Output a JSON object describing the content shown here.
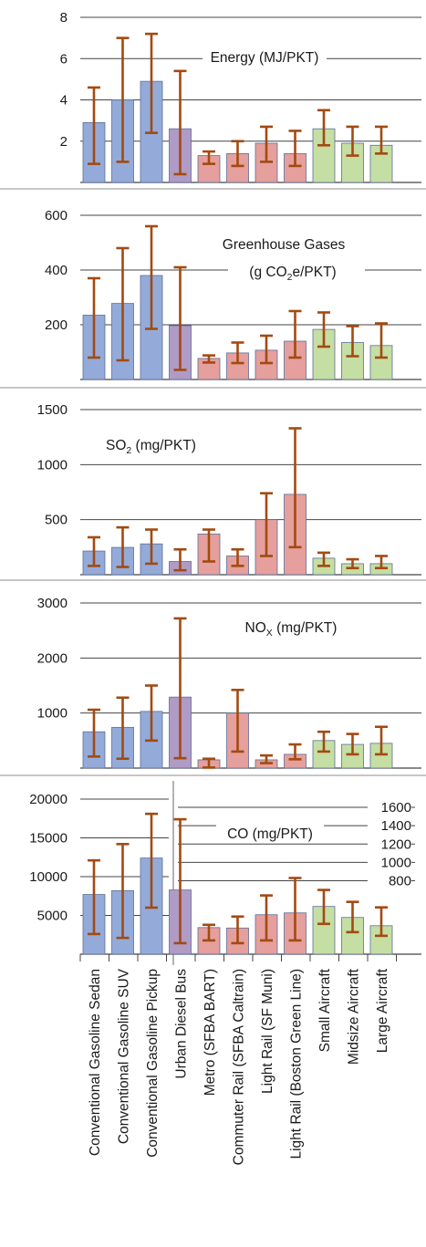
{
  "categories": [
    "Conventional Gasoline Sedan",
    "Conventional Gasoline SUV",
    "Conventional Gasoline Pickup",
    "Urban Diesel Bus",
    "Metro (SFBA BART)",
    "Commuter Rail (SFBA Caltrain)",
    "Light Rail (SF Muni)",
    "Light Rail (Boston Green Line)",
    "Small Aircraft",
    "Midsize Aircraft",
    "Large Aircraft"
  ],
  "colors": {
    "car": "#94abd9",
    "bus": "#b09bc6",
    "rail": "#e59f9c",
    "air": "#c5dea3",
    "error_bar": "#a34a11"
  },
  "chart_data": [
    {
      "type": "bar",
      "title_parts": [
        "Energy (MJ/PKT)"
      ],
      "ylim": [
        0,
        8
      ],
      "yticks": [
        "2",
        "4",
        "6",
        "8"
      ],
      "values": [
        2.9,
        4.0,
        4.9,
        2.6,
        1.3,
        1.4,
        1.9,
        1.4,
        2.6,
        1.9,
        1.8
      ],
      "err_low": [
        0.9,
        1.0,
        2.4,
        0.4,
        0.9,
        0.8,
        1.0,
        0.8,
        1.8,
        1.3,
        1.4
      ],
      "err_high": [
        4.6,
        7.0,
        7.2,
        5.4,
        1.5,
        2.0,
        2.7,
        2.5,
        3.5,
        2.7,
        2.7
      ]
    },
    {
      "type": "bar",
      "title_parts": [
        "Greenhouse Gases",
        "(g CO",
        "2",
        "e/PKT)"
      ],
      "ylim": [
        0,
        700
      ],
      "yticks": [
        "200",
        "400",
        "600"
      ],
      "values": [
        235,
        278,
        380,
        197,
        77,
        97,
        107,
        140,
        183,
        135,
        124
      ],
      "err_low": [
        80,
        70,
        185,
        35,
        62,
        60,
        60,
        80,
        120,
        85,
        80
      ],
      "err_high": [
        370,
        480,
        560,
        410,
        88,
        135,
        160,
        250,
        245,
        195,
        205
      ]
    },
    {
      "type": "bar",
      "title_parts": [
        "SO",
        "2",
        " (mg/PKT)"
      ],
      "ylim": [
        0,
        1500
      ],
      "yticks": [
        "500",
        "1000",
        "1500"
      ],
      "values": [
        215,
        248,
        280,
        120,
        370,
        170,
        500,
        730,
        150,
        100,
        100
      ],
      "err_low": [
        80,
        70,
        100,
        40,
        120,
        80,
        170,
        250,
        80,
        60,
        60
      ],
      "err_high": [
        340,
        430,
        410,
        230,
        410,
        230,
        740,
        1330,
        200,
        140,
        170
      ]
    },
    {
      "type": "bar",
      "title_parts": [
        "NO",
        "X",
        " (mg/PKT)"
      ],
      "ylim": [
        0,
        3000
      ],
      "yticks": [
        "1000",
        "2000",
        "3000"
      ],
      "values": [
        660,
        740,
        1030,
        1290,
        150,
        1000,
        150,
        250,
        500,
        430,
        450
      ],
      "err_low": [
        210,
        170,
        500,
        180,
        10,
        300,
        90,
        160,
        300,
        250,
        250
      ],
      "err_high": [
        1060,
        1280,
        1500,
        2720,
        170,
        1420,
        230,
        430,
        660,
        620,
        750
      ]
    },
    {
      "type": "bar",
      "title_parts": [
        "CO (mg/PKT)"
      ],
      "left": {
        "ylim": [
          0,
          20000
        ],
        "yticks": [
          "5000",
          "10000",
          "15000",
          "20000"
        ],
        "values": [
          7700,
          8200,
          12400
        ],
        "err_low": [
          2600,
          2100,
          6000
        ],
        "err_high": [
          12100,
          14200,
          18100
        ]
      },
      "right": {
        "ylim": [
          0,
          1650
        ],
        "ytick_values": [
          800,
          1000,
          1200,
          1400,
          1600
        ],
        "yticks": [
          "800",
          "1000",
          "1200",
          "1400",
          "1600"
        ],
        "values": [
          700,
          290,
          285,
          430,
          450,
          520,
          400,
          310
        ],
        "err_low": [
          120,
          150,
          120,
          150,
          150,
          330,
          240,
          200
        ],
        "err_high": [
          1470,
          320,
          410,
          640,
          830,
          700,
          570,
          510
        ]
      }
    }
  ]
}
